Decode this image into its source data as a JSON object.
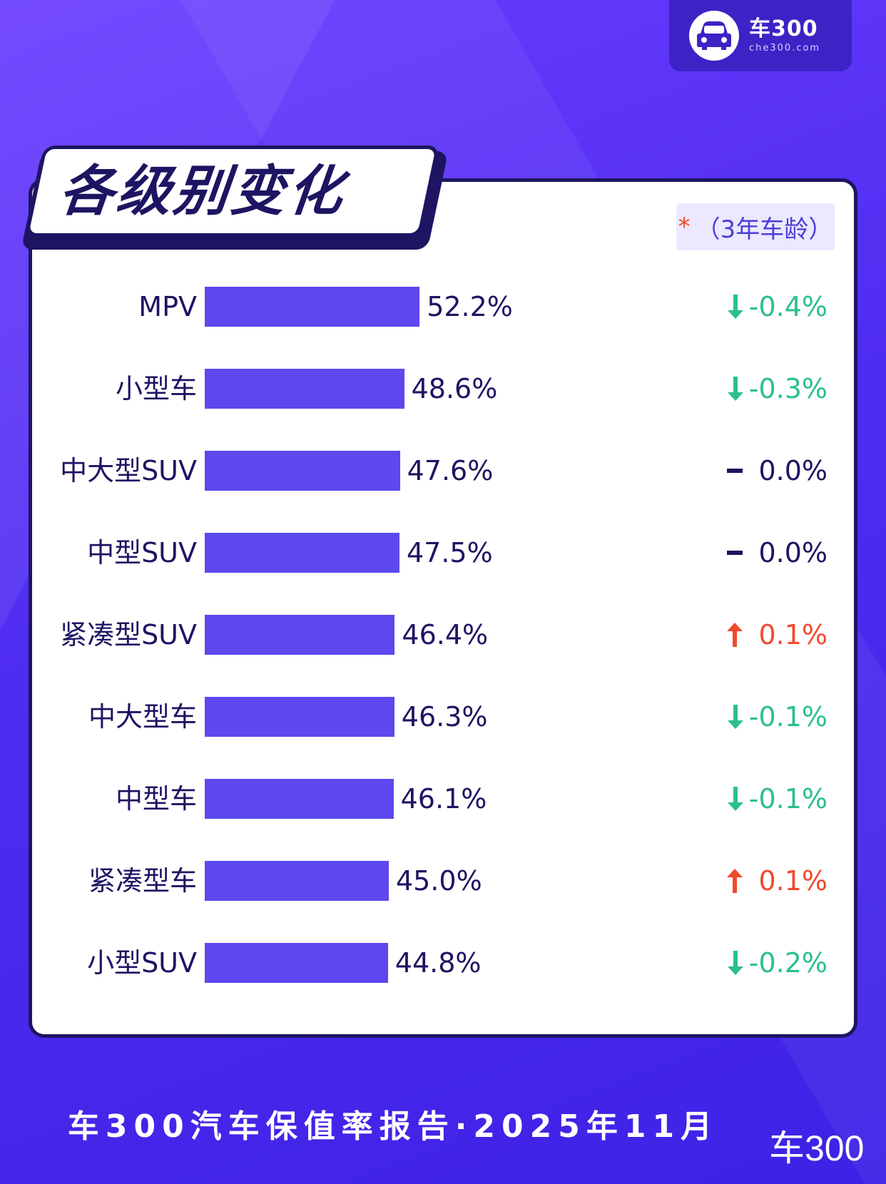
{
  "brand": {
    "name": "车300",
    "url": "che300.com"
  },
  "title": "各级别变化",
  "note": {
    "star": "*",
    "text": "（3年车龄）"
  },
  "colors": {
    "bar": "#5c48ee",
    "down": "#2bbf8e",
    "up": "#f04a2e",
    "flat": "#1d1562"
  },
  "chart_data": {
    "type": "bar",
    "orientation": "horizontal",
    "categories": [
      "MPV",
      "小型车",
      "中大型SUV",
      "中型SUV",
      "紧凑型SUV",
      "中大型车",
      "中型车",
      "紧凑型车",
      "小型SUV"
    ],
    "values": [
      52.2,
      48.6,
      47.6,
      47.5,
      46.4,
      46.3,
      46.1,
      45.0,
      44.8
    ],
    "value_labels": [
      "52.2%",
      "48.6%",
      "47.6%",
      "47.5%",
      "46.4%",
      "46.3%",
      "46.1%",
      "45.0%",
      "44.8%"
    ],
    "changes": [
      -0.4,
      -0.3,
      0.0,
      0.0,
      0.1,
      -0.1,
      -0.1,
      0.1,
      -0.2
    ],
    "change_labels": [
      "-0.4%",
      "-0.3%",
      "0.0%",
      "0.0%",
      "0.1%",
      "-0.1%",
      "-0.1%",
      "0.1%",
      "-0.2%"
    ]
  },
  "footer": {
    "text": "车300汽车保值率报告·2025年11月",
    "mark": "车300"
  }
}
